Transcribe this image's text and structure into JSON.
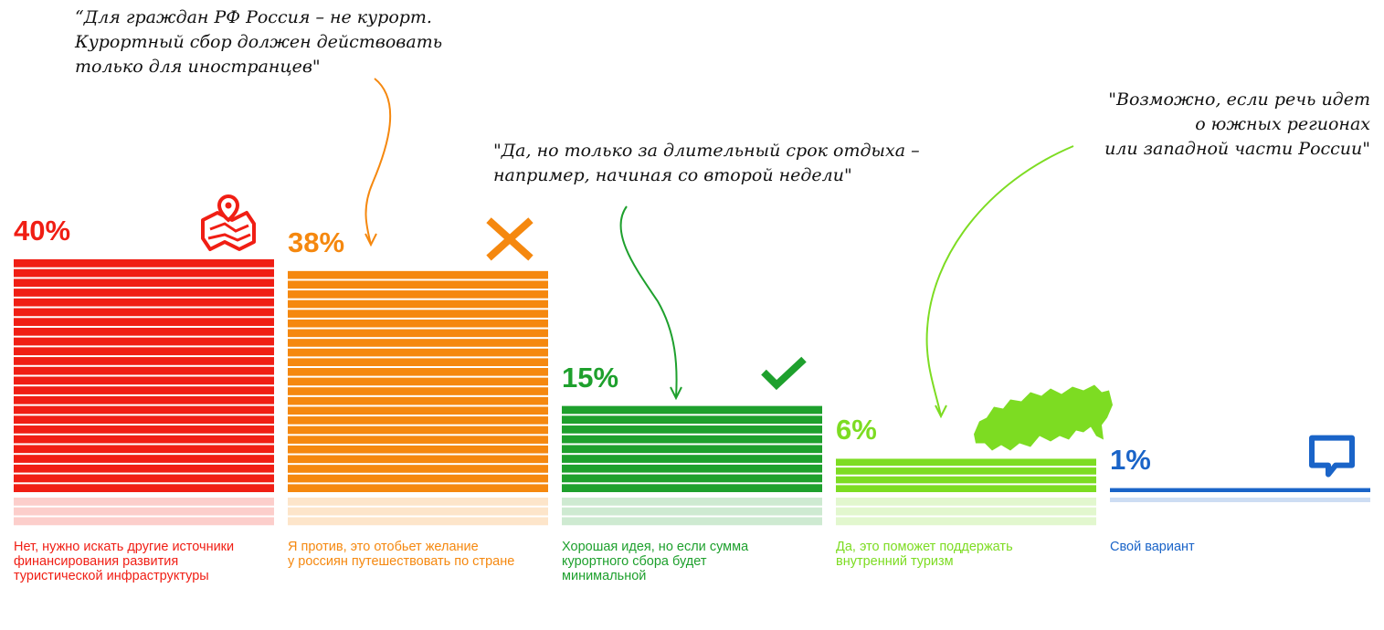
{
  "quotes": {
    "against": "“Для граждан РФ Россия – не курорт.\nКурортный сбор должен действовать\nтолько для иностранцев\"",
    "long_stay": "\"Да, но только за длительный срок отдыха –\nнапример, начиная со второй недели\"",
    "south": "\"Возможно, если речь идет\nо южных регионах\nили западной части России\""
  },
  "chart_data": {
    "type": "bar",
    "categories": [
      "Нет, нужно искать другие источники финансирования развития туристической инфраструктуры",
      "Я против, это отобьет желание у россиян путешествовать по стране",
      "Хорошая идея, но если сумма курортного сбора будет минимальной",
      "Да, это поможет поддержать внутренний туризм",
      "Свой вариант"
    ],
    "values": [
      40,
      38,
      15,
      6,
      1
    ],
    "value_labels": [
      "40%",
      "38%",
      "15%",
      "6%",
      "1%"
    ],
    "captions": [
      "Нет, нужно искать другие источники\nфинансирования развития\nтуристической инфраструктуры",
      "Я против, это отобьет желание\nу россиян путешествовать по стране",
      "Хорошая идея, но если сумма\nкурортного сбора будет\nминимальной",
      "Да, это поможет поддержать\nвнутренний туризм",
      "Свой вариант"
    ],
    "colors": [
      "#f01e14",
      "#f5880f",
      "#1ea02d",
      "#7ddc22",
      "#1a64c8"
    ],
    "icons": [
      "map-pin-icon",
      "cross-icon",
      "checkmark-icon",
      "russia-map-icon",
      "speech-bubble-icon"
    ],
    "ylim": [
      0,
      40
    ]
  }
}
